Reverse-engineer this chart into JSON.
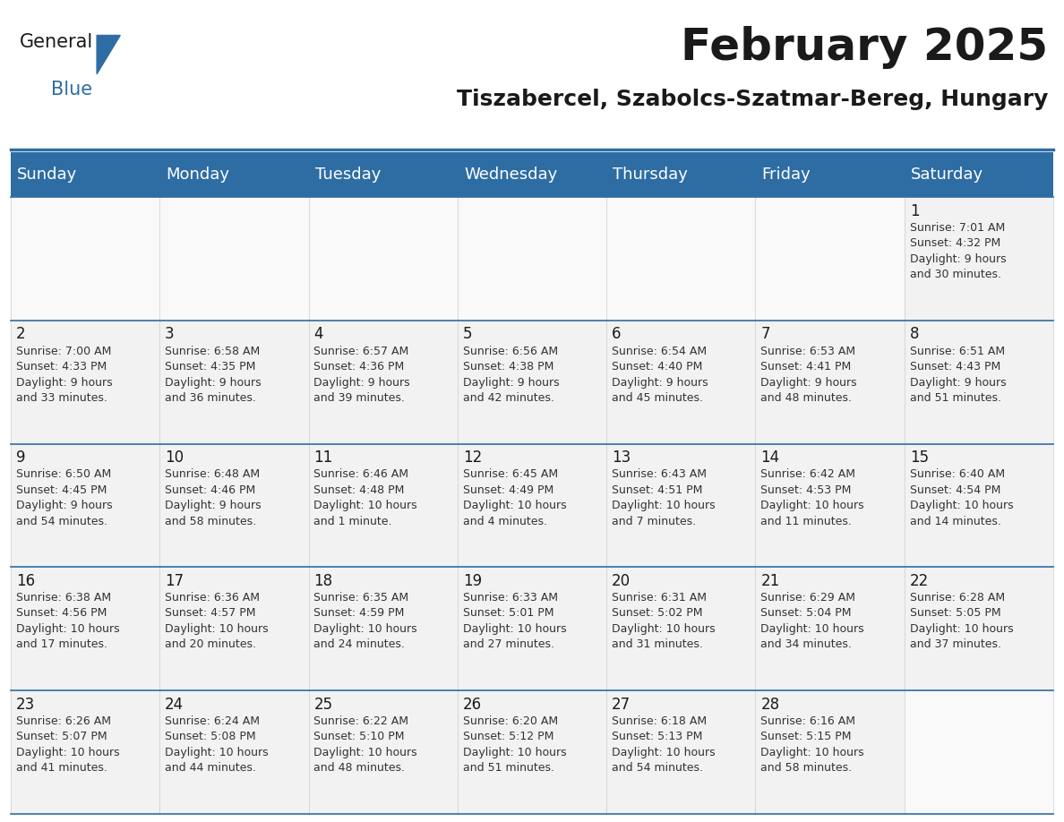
{
  "title": "February 2025",
  "subtitle": "Tiszabercel, Szabolcs-Szatmar-Bereg, Hungary",
  "header_color": "#2E6DA4",
  "header_text_color": "#FFFFFF",
  "background_color": "#FFFFFF",
  "border_color": "#2E6DA4",
  "day_names": [
    "Sunday",
    "Monday",
    "Tuesday",
    "Wednesday",
    "Thursday",
    "Friday",
    "Saturday"
  ],
  "title_fontsize": 36,
  "subtitle_fontsize": 18,
  "header_fontsize": 13,
  "day_num_fontsize": 12,
  "cell_fontsize": 9,
  "weeks": [
    [
      {
        "day": null,
        "info": ""
      },
      {
        "day": null,
        "info": ""
      },
      {
        "day": null,
        "info": ""
      },
      {
        "day": null,
        "info": ""
      },
      {
        "day": null,
        "info": ""
      },
      {
        "day": null,
        "info": ""
      },
      {
        "day": 1,
        "info": "Sunrise: 7:01 AM\nSunset: 4:32 PM\nDaylight: 9 hours\nand 30 minutes."
      }
    ],
    [
      {
        "day": 2,
        "info": "Sunrise: 7:00 AM\nSunset: 4:33 PM\nDaylight: 9 hours\nand 33 minutes."
      },
      {
        "day": 3,
        "info": "Sunrise: 6:58 AM\nSunset: 4:35 PM\nDaylight: 9 hours\nand 36 minutes."
      },
      {
        "day": 4,
        "info": "Sunrise: 6:57 AM\nSunset: 4:36 PM\nDaylight: 9 hours\nand 39 minutes."
      },
      {
        "day": 5,
        "info": "Sunrise: 6:56 AM\nSunset: 4:38 PM\nDaylight: 9 hours\nand 42 minutes."
      },
      {
        "day": 6,
        "info": "Sunrise: 6:54 AM\nSunset: 4:40 PM\nDaylight: 9 hours\nand 45 minutes."
      },
      {
        "day": 7,
        "info": "Sunrise: 6:53 AM\nSunset: 4:41 PM\nDaylight: 9 hours\nand 48 minutes."
      },
      {
        "day": 8,
        "info": "Sunrise: 6:51 AM\nSunset: 4:43 PM\nDaylight: 9 hours\nand 51 minutes."
      }
    ],
    [
      {
        "day": 9,
        "info": "Sunrise: 6:50 AM\nSunset: 4:45 PM\nDaylight: 9 hours\nand 54 minutes."
      },
      {
        "day": 10,
        "info": "Sunrise: 6:48 AM\nSunset: 4:46 PM\nDaylight: 9 hours\nand 58 minutes."
      },
      {
        "day": 11,
        "info": "Sunrise: 6:46 AM\nSunset: 4:48 PM\nDaylight: 10 hours\nand 1 minute."
      },
      {
        "day": 12,
        "info": "Sunrise: 6:45 AM\nSunset: 4:49 PM\nDaylight: 10 hours\nand 4 minutes."
      },
      {
        "day": 13,
        "info": "Sunrise: 6:43 AM\nSunset: 4:51 PM\nDaylight: 10 hours\nand 7 minutes."
      },
      {
        "day": 14,
        "info": "Sunrise: 6:42 AM\nSunset: 4:53 PM\nDaylight: 10 hours\nand 11 minutes."
      },
      {
        "day": 15,
        "info": "Sunrise: 6:40 AM\nSunset: 4:54 PM\nDaylight: 10 hours\nand 14 minutes."
      }
    ],
    [
      {
        "day": 16,
        "info": "Sunrise: 6:38 AM\nSunset: 4:56 PM\nDaylight: 10 hours\nand 17 minutes."
      },
      {
        "day": 17,
        "info": "Sunrise: 6:36 AM\nSunset: 4:57 PM\nDaylight: 10 hours\nand 20 minutes."
      },
      {
        "day": 18,
        "info": "Sunrise: 6:35 AM\nSunset: 4:59 PM\nDaylight: 10 hours\nand 24 minutes."
      },
      {
        "day": 19,
        "info": "Sunrise: 6:33 AM\nSunset: 5:01 PM\nDaylight: 10 hours\nand 27 minutes."
      },
      {
        "day": 20,
        "info": "Sunrise: 6:31 AM\nSunset: 5:02 PM\nDaylight: 10 hours\nand 31 minutes."
      },
      {
        "day": 21,
        "info": "Sunrise: 6:29 AM\nSunset: 5:04 PM\nDaylight: 10 hours\nand 34 minutes."
      },
      {
        "day": 22,
        "info": "Sunrise: 6:28 AM\nSunset: 5:05 PM\nDaylight: 10 hours\nand 37 minutes."
      }
    ],
    [
      {
        "day": 23,
        "info": "Sunrise: 6:26 AM\nSunset: 5:07 PM\nDaylight: 10 hours\nand 41 minutes."
      },
      {
        "day": 24,
        "info": "Sunrise: 6:24 AM\nSunset: 5:08 PM\nDaylight: 10 hours\nand 44 minutes."
      },
      {
        "day": 25,
        "info": "Sunrise: 6:22 AM\nSunset: 5:10 PM\nDaylight: 10 hours\nand 48 minutes."
      },
      {
        "day": 26,
        "info": "Sunrise: 6:20 AM\nSunset: 5:12 PM\nDaylight: 10 hours\nand 51 minutes."
      },
      {
        "day": 27,
        "info": "Sunrise: 6:18 AM\nSunset: 5:13 PM\nDaylight: 10 hours\nand 54 minutes."
      },
      {
        "day": 28,
        "info": "Sunrise: 6:16 AM\nSunset: 5:15 PM\nDaylight: 10 hours\nand 58 minutes."
      },
      {
        "day": null,
        "info": ""
      }
    ]
  ]
}
